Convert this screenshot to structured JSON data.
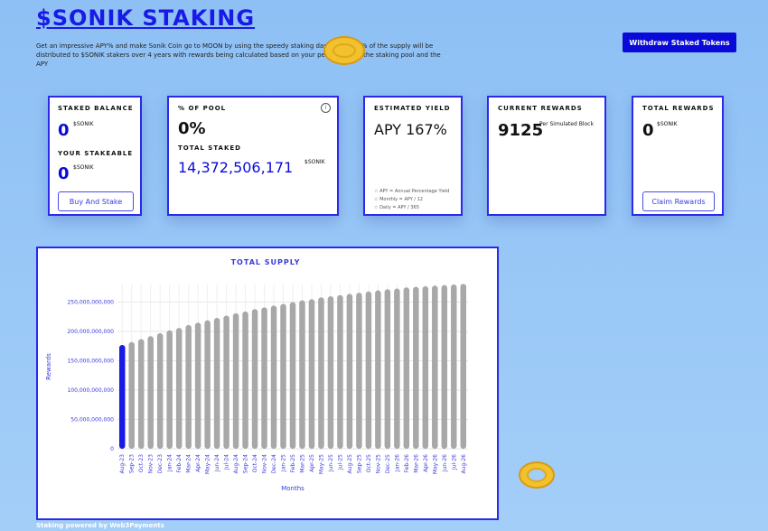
{
  "header": {
    "title": "$SONIK STAKING",
    "description": "Get an impressive APY% and make Sonik Coin go to MOON by using the speedy staking dashboard. 40% of the supply will be distributed to $SONIK stakers over 4 years with rewards being calculated based on your percentage of the staking pool and the APY",
    "withdraw_label": "Withdraw Staked Tokens"
  },
  "cards": {
    "staked_balance": {
      "label": "STAKED BALANCE",
      "value": "0",
      "unit": "$SONIK"
    },
    "your_stakeable": {
      "label": "YOUR STAKEABLE",
      "value": "0",
      "unit": "$SONIK",
      "button": "Buy And Stake"
    },
    "pool": {
      "label": "% OF POOL",
      "value": "0%",
      "info_icon": "info-icon"
    },
    "total_staked": {
      "label": "TOTAL STAKED",
      "value": "14,372,506,171",
      "unit": "$SONIK"
    },
    "yield": {
      "label": "ESTIMATED YIELD",
      "value": "APY 167%",
      "notes": [
        "APY = Annual Percentage Yield",
        "Monthly = APY / 12",
        "Daily = APY / 365"
      ]
    },
    "current_rewards": {
      "label": "CURRENT REWARDS",
      "value": "9125",
      "unit": "Per Simulated Block"
    },
    "total_rewards": {
      "label": "TOTAL REWARDS",
      "value": "0",
      "unit": "$SONIK",
      "button": "Claim Rewards"
    }
  },
  "colors": {
    "accent": "#0a0ad8",
    "highlight_bar": "#1a1ae6",
    "bar": "#a8a8a8"
  },
  "chart_data": {
    "type": "bar",
    "title": "TOTAL SUPPLY",
    "xlabel": "Months",
    "ylabel": "Rewards",
    "yticks": [
      "0",
      "50,000,000,000",
      "100,000,000,000",
      "150,000,000,000",
      "200,000,000,000",
      "250,000,000,000"
    ],
    "ylim": [
      0,
      280000000000
    ],
    "categories": [
      "Aug-23",
      "Sep-23",
      "Oct-23",
      "Nov-23",
      "Dec-23",
      "Jan-24",
      "Feb-24",
      "Mar-24",
      "Apr-24",
      "May-24",
      "Jun-24",
      "Jul-24",
      "Aug-24",
      "Sep-24",
      "Oct-24",
      "Nov-24",
      "Dec-24",
      "Jan-25",
      "Feb-25",
      "Mar-25",
      "Apr-25",
      "May-25",
      "Jun-25",
      "Jul-25",
      "Aug-25",
      "Sep-25",
      "Oct-25",
      "Nov-25",
      "Dec-25",
      "Jan-26",
      "Feb-26",
      "Mar-26",
      "Apr-26",
      "May-26",
      "Jun-26",
      "Jul-26",
      "Aug-26"
    ],
    "values": [
      177000000000,
      182000000000,
      187000000000,
      192000000000,
      197000000000,
      202000000000,
      206000000000,
      211000000000,
      215000000000,
      219000000000,
      223000000000,
      227000000000,
      231000000000,
      234000000000,
      238000000000,
      241000000000,
      244000000000,
      247000000000,
      250000000000,
      253000000000,
      255000000000,
      258000000000,
      260000000000,
      262000000000,
      264000000000,
      266000000000,
      268000000000,
      270000000000,
      272000000000,
      273000000000,
      275000000000,
      276000000000,
      277000000000,
      278000000000,
      279000000000,
      280000000000,
      281000000000
    ],
    "highlight_index": 0
  },
  "footer": {
    "text": "Staking powered by Web3Payments"
  }
}
